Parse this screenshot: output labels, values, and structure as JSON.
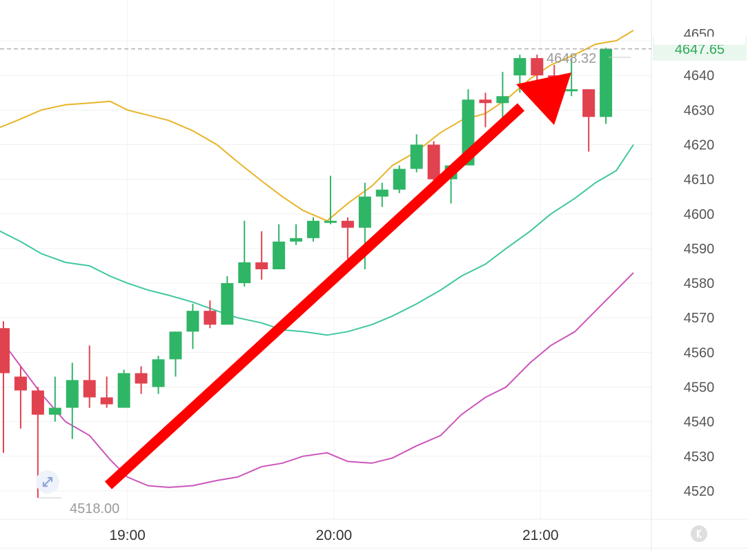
{
  "chart_data": {
    "type": "candlestick",
    "y_axis": {
      "range": [
        4515,
        4652
      ],
      "ticks": [
        4520,
        4530,
        4540,
        4550,
        4560,
        4570,
        4580,
        4590,
        4600,
        4610,
        4620,
        4630,
        4640
      ],
      "tick_labels": [
        "4520",
        "4530",
        "4540",
        "4550",
        "4560",
        "4570",
        "4580",
        "4590",
        "4600",
        "4610",
        "4620",
        "4630",
        "4640"
      ],
      "partial_top_label": "4650",
      "position": "right"
    },
    "x_axis": {
      "tick_labels": [
        "19:00",
        "20:00",
        "21:00"
      ],
      "tick_times": [
        "19:00",
        "20:00",
        "21:00"
      ],
      "range": [
        "18:23",
        "21:27"
      ]
    },
    "grid": true,
    "current_price": {
      "value": 4647.65,
      "label": "4647.65",
      "color": "#2fa85a"
    },
    "high_marker": {
      "value": 4648.32,
      "label": "4648.32"
    },
    "low_marker": {
      "value": 4518.0,
      "label": "4518.00"
    },
    "candles": [
      {
        "t": "18:24",
        "open": 4567,
        "high": 4569,
        "low": 4531,
        "close": 4554
      },
      {
        "t": "18:29",
        "open": 4553,
        "high": 4556,
        "low": 4538,
        "close": 4549
      },
      {
        "t": "18:34",
        "open": 4549,
        "high": 4550,
        "low": 4518,
        "close": 4542
      },
      {
        "t": "18:39",
        "open": 4542,
        "high": 4553,
        "low": 4540,
        "close": 4544
      },
      {
        "t": "18:44",
        "open": 4544,
        "high": 4557,
        "low": 4535,
        "close": 4552
      },
      {
        "t": "18:49",
        "open": 4552,
        "high": 4562,
        "low": 4544,
        "close": 4547
      },
      {
        "t": "18:54",
        "open": 4547,
        "high": 4553,
        "low": 4544,
        "close": 4545
      },
      {
        "t": "18:59",
        "open": 4544,
        "high": 4555,
        "low": 4544,
        "close": 4554
      },
      {
        "t": "19:04",
        "open": 4554,
        "high": 4556,
        "low": 4548,
        "close": 4551
      },
      {
        "t": "19:09",
        "open": 4550,
        "high": 4559,
        "low": 4548,
        "close": 4558
      },
      {
        "t": "19:14",
        "open": 4558,
        "high": 4566,
        "low": 4553,
        "close": 4566
      },
      {
        "t": "19:19",
        "open": 4566,
        "high": 4574,
        "low": 4561,
        "close": 4572
      },
      {
        "t": "19:24",
        "open": 4572,
        "high": 4575,
        "low": 4567,
        "close": 4568
      },
      {
        "t": "19:29",
        "open": 4568,
        "high": 4582,
        "low": 4568,
        "close": 4580
      },
      {
        "t": "19:34",
        "open": 4580,
        "high": 4598,
        "low": 4579,
        "close": 4586
      },
      {
        "t": "19:39",
        "open": 4586,
        "high": 4595,
        "low": 4581,
        "close": 4584
      },
      {
        "t": "19:44",
        "open": 4584,
        "high": 4597,
        "low": 4584,
        "close": 4592
      },
      {
        "t": "19:49",
        "open": 4592,
        "high": 4597,
        "low": 4591,
        "close": 4593
      },
      {
        "t": "19:54",
        "open": 4593,
        "high": 4599,
        "low": 4592,
        "close": 4598
      },
      {
        "t": "19:59",
        "open": 4598,
        "high": 4611,
        "low": 4597,
        "close": 4598
      },
      {
        "t": "20:04",
        "open": 4598,
        "high": 4599,
        "low": 4587,
        "close": 4596
      },
      {
        "t": "20:09",
        "open": 4596,
        "high": 4609,
        "low": 4584,
        "close": 4605
      },
      {
        "t": "20:14",
        "open": 4605,
        "high": 4609,
        "low": 4602,
        "close": 4607
      },
      {
        "t": "20:19",
        "open": 4607,
        "high": 4614,
        "low": 4606,
        "close": 4613
      },
      {
        "t": "20:24",
        "open": 4613,
        "high": 4623,
        "low": 4612,
        "close": 4620
      },
      {
        "t": "20:29",
        "open": 4620,
        "high": 4621,
        "low": 4606,
        "close": 4610
      },
      {
        "t": "20:34",
        "open": 4610,
        "high": 4614,
        "low": 4603,
        "close": 4614
      },
      {
        "t": "20:39",
        "open": 4614,
        "high": 4636,
        "low": 4614,
        "close": 4633
      },
      {
        "t": "20:44",
        "open": 4633,
        "high": 4635,
        "low": 4625,
        "close": 4632
      },
      {
        "t": "20:49",
        "open": 4632,
        "high": 4641,
        "low": 4625,
        "close": 4634
      },
      {
        "t": "20:54",
        "open": 4640,
        "high": 4646,
        "low": 4635,
        "close": 4645
      },
      {
        "t": "20:59",
        "open": 4645,
        "high": 4646,
        "low": 4638,
        "close": 4640
      },
      {
        "t": "21:04",
        "open": 4640,
        "high": 4643,
        "low": 4632,
        "close": 4636
      },
      {
        "t": "21:09",
        "open": 4636,
        "high": 4645,
        "low": 4634,
        "close": 4636
      },
      {
        "t": "21:14",
        "open": 4636,
        "high": 4636,
        "low": 4618,
        "close": 4628
      },
      {
        "t": "21:19",
        "open": 4628,
        "high": 4648,
        "low": 4626,
        "close": 4647.65
      }
    ],
    "bands": [
      {
        "role": "upper",
        "color": "#e8b428",
        "points": [
          [
            "18:23",
            4625
          ],
          [
            "18:28",
            4627
          ],
          [
            "18:35",
            4630
          ],
          [
            "18:42",
            4631.5
          ],
          [
            "18:49",
            4632
          ],
          [
            "18:55",
            4632.5
          ],
          [
            "19:00",
            4630
          ],
          [
            "19:06",
            4628.5
          ],
          [
            "19:12",
            4627
          ],
          [
            "19:19",
            4624
          ],
          [
            "19:26",
            4620
          ],
          [
            "19:32",
            4615
          ],
          [
            "19:39",
            4609.5
          ],
          [
            "19:45",
            4605
          ],
          [
            "19:51",
            4601
          ],
          [
            "19:58",
            4598
          ],
          [
            "20:04",
            4603
          ],
          [
            "20:11",
            4608
          ],
          [
            "20:17",
            4614
          ],
          [
            "20:24",
            4618
          ],
          [
            "20:31",
            4623.5
          ],
          [
            "20:37",
            4627
          ],
          [
            "20:44",
            4629
          ],
          [
            "20:50",
            4633
          ],
          [
            "20:57",
            4639
          ],
          [
            "21:03",
            4643
          ],
          [
            "21:10",
            4646
          ],
          [
            "21:16",
            4649
          ],
          [
            "21:22",
            4650
          ],
          [
            "21:27",
            4653
          ]
        ]
      },
      {
        "role": "middle",
        "color": "#3ec7a0",
        "points": [
          [
            "18:23",
            4595
          ],
          [
            "18:29",
            4592
          ],
          [
            "18:35",
            4588.5
          ],
          [
            "18:42",
            4586
          ],
          [
            "18:49",
            4585
          ],
          [
            "18:55",
            4582
          ],
          [
            "19:00",
            4580
          ],
          [
            "19:06",
            4578
          ],
          [
            "19:12",
            4576.5
          ],
          [
            "19:19",
            4574.5
          ],
          [
            "19:26",
            4572
          ],
          [
            "19:32",
            4570
          ],
          [
            "19:39",
            4568.5
          ],
          [
            "19:45",
            4566.5
          ],
          [
            "19:51",
            4566
          ],
          [
            "19:58",
            4565
          ],
          [
            "20:04",
            4566
          ],
          [
            "20:11",
            4568
          ],
          [
            "20:17",
            4570.5
          ],
          [
            "20:24",
            4574
          ],
          [
            "20:31",
            4578
          ],
          [
            "20:37",
            4582
          ],
          [
            "20:44",
            4585.5
          ],
          [
            "20:50",
            4590
          ],
          [
            "20:57",
            4595
          ],
          [
            "21:03",
            4600
          ],
          [
            "21:10",
            4604.5
          ],
          [
            "21:16",
            4609
          ],
          [
            "21:22",
            4612.5
          ],
          [
            "21:27",
            4620
          ]
        ]
      },
      {
        "role": "lower",
        "color": "#cc55bb",
        "points": [
          [
            "18:23",
            4564
          ],
          [
            "18:29",
            4556
          ],
          [
            "18:35",
            4548
          ],
          [
            "18:42",
            4540
          ],
          [
            "18:49",
            4536
          ],
          [
            "18:55",
            4529
          ],
          [
            "19:00",
            4524
          ],
          [
            "19:06",
            4521.5
          ],
          [
            "19:12",
            4521
          ],
          [
            "19:19",
            4521.5
          ],
          [
            "19:26",
            4523
          ],
          [
            "19:32",
            4524
          ],
          [
            "19:39",
            4527
          ],
          [
            "19:45",
            4528
          ],
          [
            "19:51",
            4530
          ],
          [
            "19:58",
            4531
          ],
          [
            "20:04",
            4528.5
          ],
          [
            "20:11",
            4528
          ],
          [
            "20:17",
            4529.5
          ],
          [
            "20:24",
            4533
          ],
          [
            "20:31",
            4536
          ],
          [
            "20:37",
            4542
          ],
          [
            "20:44",
            4547
          ],
          [
            "20:50",
            4550
          ],
          [
            "20:57",
            4557
          ],
          [
            "21:03",
            4562
          ],
          [
            "21:10",
            4566
          ],
          [
            "21:16",
            4572
          ],
          [
            "21:22",
            4578
          ],
          [
            "21:27",
            4583
          ]
        ]
      }
    ],
    "annotation": {
      "type": "arrow",
      "direction": "up-right",
      "color": "#ff0000"
    },
    "colors": {
      "up": "#2fb566",
      "down": "#e0424f"
    }
  }
}
